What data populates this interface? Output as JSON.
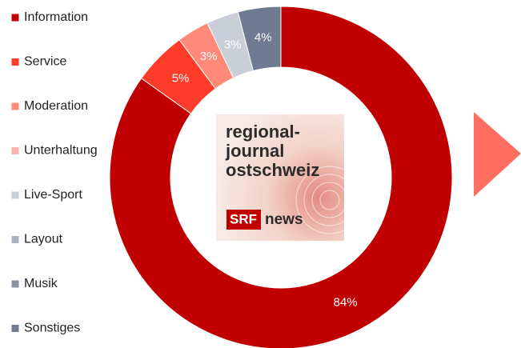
{
  "chart_data": {
    "type": "donut",
    "categories": [
      "Information",
      "Service",
      "Moderation",
      "Unterhaltung",
      "Live-Sport",
      "Layout",
      "Musik",
      "Sonstiges"
    ],
    "values": [
      84,
      5,
      3,
      0,
      3,
      0,
      0,
      4
    ],
    "value_labels": [
      "84%",
      "5%",
      "3%",
      null,
      "3%",
      null,
      null,
      "4%"
    ],
    "colors": [
      "#c00000",
      "#ff3b2a",
      "#ff8a7a",
      "#ffb3ae",
      "#c9ced8",
      "#a9b2c0",
      "#8892a3",
      "#6f7b91"
    ],
    "legend": "left"
  },
  "logo": {
    "lines": [
      "regional-",
      "journal",
      "ostschweiz"
    ],
    "brand": "SRF",
    "product": "news"
  }
}
